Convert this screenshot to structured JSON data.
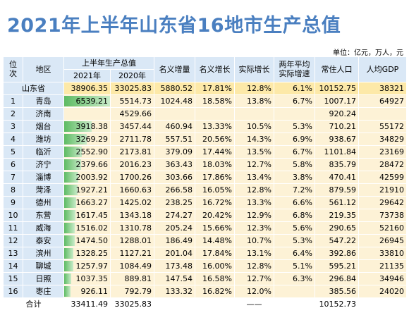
{
  "header": {
    "title": "2021年上半年山东省16地市生产总值",
    "unit": "单位：亿元，万人，元"
  },
  "table": {
    "header": {
      "rank": "位次",
      "region": "地区",
      "gdp": "上半年生产总值",
      "y2021": "2021年",
      "y2020": "2020年",
      "cols": [
        "名义增量",
        "名义增长",
        "实际增长",
        "两年平均实际增速",
        "常住人口",
        "人均GDP"
      ]
    },
    "province": [
      "山东省",
      "38906.35",
      "33025.83",
      "5880.52",
      "17.81%",
      "12.8%",
      "6.1%",
      "10152.75",
      "38321"
    ],
    "rows": [
      [
        "1",
        "青岛",
        "6539.21",
        "5514.73",
        "1024.48",
        "18.58%",
        "13.8%",
        "6.7%",
        "1007.17",
        "64927"
      ],
      [
        "2",
        "济南",
        null,
        "4529.66",
        null,
        null,
        null,
        null,
        "920.24",
        null
      ],
      [
        "3",
        "烟台",
        "3918.38",
        "3457.44",
        "460.94",
        "13.33%",
        "10.5%",
        "5.3%",
        "710.21",
        "55172"
      ],
      [
        "4",
        "潍坊",
        "3269.29",
        "2711.78",
        "557.51",
        "20.56%",
        "14.3%",
        "6.9%",
        "938.67",
        "34829"
      ],
      [
        "5",
        "临沂",
        "2552.90",
        "2173.81",
        "379.09",
        "17.44%",
        "13.5%",
        "6.7%",
        "1101.84",
        "23169"
      ],
      [
        "6",
        "济宁",
        "2379.66",
        "2016.23",
        "363.43",
        "18.03%",
        "12.7%",
        "5.8%",
        "835.79",
        "28472"
      ],
      [
        "7",
        "淄博",
        "2003.92",
        "1700.26",
        "303.66",
        "17.86%",
        "13.4%",
        "3.8%",
        "470.41",
        "42599"
      ],
      [
        "8",
        "菏泽",
        "1927.21",
        "1660.63",
        "266.58",
        "16.05%",
        "12.8%",
        "7.2%",
        "879.59",
        "21910"
      ],
      [
        "9",
        "德州",
        "1663.27",
        "1425.02",
        "238.25",
        "16.72%",
        "13.3%",
        "6.6%",
        "561.12",
        "29642"
      ],
      [
        "10",
        "东营",
        "1617.45",
        "1343.18",
        "274.27",
        "20.42%",
        "12.9%",
        "6.8%",
        "219.35",
        "73738"
      ],
      [
        "11",
        "威海",
        "1516.02",
        "1310.78",
        "205.24",
        "15.66%",
        "12.3%",
        "5.6%",
        "290.65",
        "52160"
      ],
      [
        "12",
        "泰安",
        "1474.50",
        "1288.01",
        "186.49",
        "14.48%",
        "10.7%",
        "5.3%",
        "547.22",
        "26945"
      ],
      [
        "13",
        "滨州",
        "1328.25",
        "1127.21",
        "201.04",
        "17.84%",
        "13.1%",
        "6.4%",
        "392.86",
        "33810"
      ],
      [
        "14",
        "聊城",
        "1257.97",
        "1084.49",
        "173.48",
        "16.00%",
        "12.8%",
        "5.1%",
        "595.21",
        "21135"
      ],
      [
        "15",
        "日照",
        "1037.35",
        "889.81",
        "147.54",
        "16.58%",
        "12.7%",
        "6.3%",
        "296.84",
        "34946"
      ],
      [
        "16",
        "枣庄",
        "926.11",
        "792.79",
        "133.32",
        "16.82%",
        "12.0%",
        null,
        "385.56",
        "24020"
      ]
    ],
    "total": [
      "合计",
      "33411.49",
      "33025.83",
      null,
      null,
      "——",
      null,
      "10152.73",
      null
    ]
  }
}
